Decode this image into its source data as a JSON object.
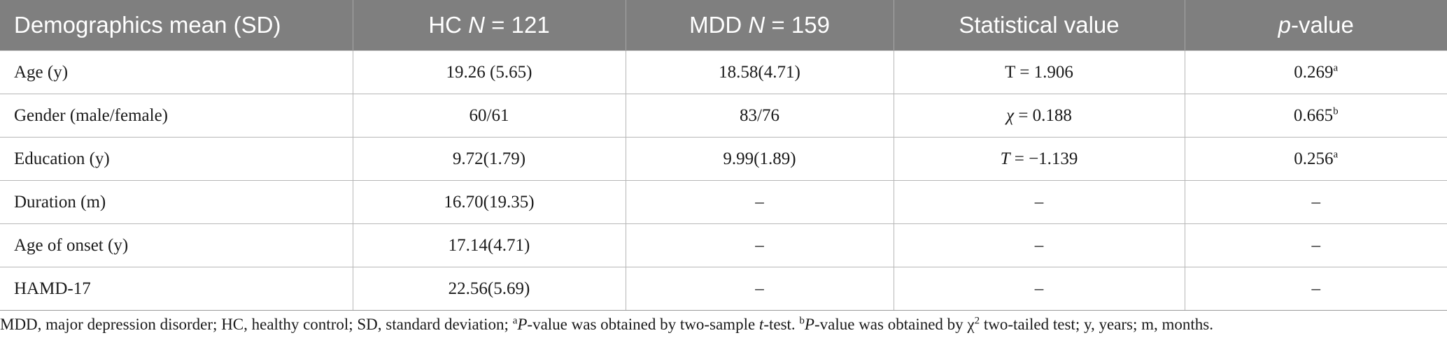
{
  "table": {
    "headers": [
      {
        "text": "Demographics mean (SD)"
      },
      {
        "pre": "HC ",
        "italic": "N",
        "post": " = 121"
      },
      {
        "pre": "MDD ",
        "italic": "N",
        "post": " = 159"
      },
      {
        "text": "Statistical value"
      },
      {
        "italic": "p",
        "post": "-value"
      }
    ],
    "rows": [
      {
        "label": "Age (y)",
        "hc": "19.26 (5.65)",
        "mdd": "18.58(4.71)",
        "stat": {
          "pre": "T = 1.906"
        },
        "p": {
          "value": "0.269",
          "sup": "a"
        }
      },
      {
        "label": "Gender (male/female)",
        "hc": "60/61",
        "mdd": "83/76",
        "stat": {
          "italic": "χ",
          "post": " = 0.188"
        },
        "p": {
          "value": "0.665",
          "sup": "b"
        }
      },
      {
        "label": "Education (y)",
        "hc": "9.72(1.79)",
        "mdd": "9.99(1.89)",
        "stat": {
          "italic": "T",
          "post": " = −1.139"
        },
        "p": {
          "value": "0.256",
          "sup": "a"
        }
      },
      {
        "label": "Duration (m)",
        "hc": "16.70(19.35)",
        "mdd": "–",
        "stat": {
          "pre": "–"
        },
        "p": {
          "value": "–"
        }
      },
      {
        "label": "Age of onset (y)",
        "hc": "17.14(4.71)",
        "mdd": "–",
        "stat": {
          "pre": "–"
        },
        "p": {
          "value": "–"
        }
      },
      {
        "label": "HAMD-17",
        "hc": "22.56(5.69)",
        "mdd": "–",
        "stat": {
          "pre": "–"
        },
        "p": {
          "value": "–"
        }
      }
    ]
  },
  "footnote": {
    "part1": "MDD, major depression disorder; HC, healthy control; SD, standard deviation; ",
    "sup_a": "a",
    "italic_p1": "P",
    "part2": "-value was obtained by two-sample ",
    "italic_t": "t",
    "part3": "-test. ",
    "sup_b": "b",
    "italic_p2": "P",
    "part4": "-value was obtained by χ",
    "sup_2": "2",
    "part5": " two-tailed test; y, years; m, months."
  },
  "colors": {
    "header_bg": "#7f7f7f",
    "header_text": "#ffffff",
    "grid": "#b7b7b7"
  }
}
